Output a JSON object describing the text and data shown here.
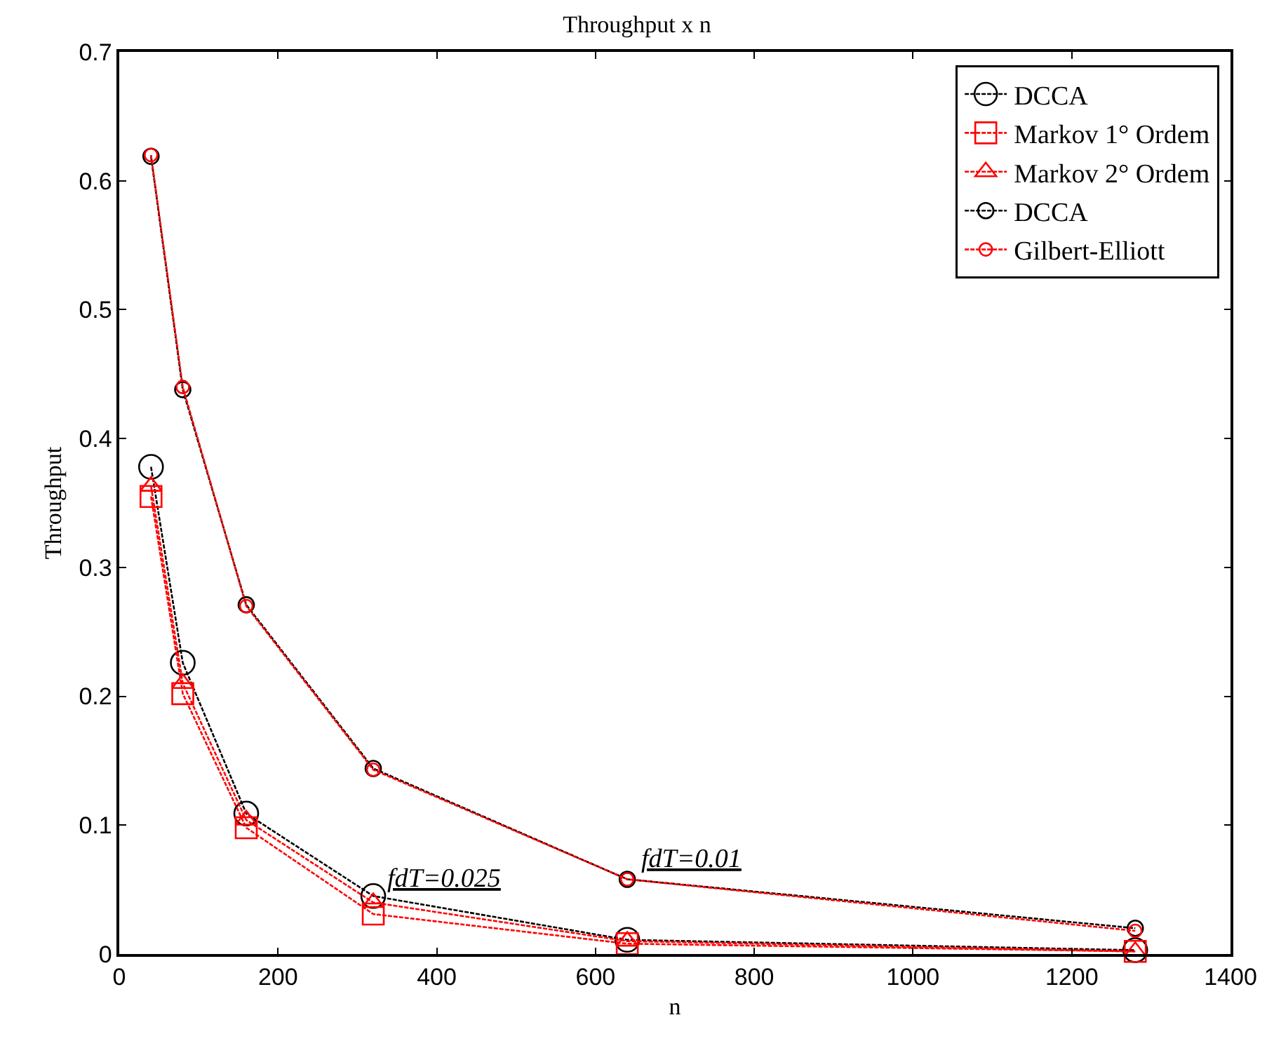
{
  "chart_data": {
    "type": "line",
    "title": "Throughput x n",
    "xlabel": "n",
    "ylabel": "Throughput",
    "x": [
      40,
      80,
      160,
      320,
      640,
      1280
    ],
    "series": [
      {
        "name": "DCCA",
        "color": "#000000",
        "marker": "circle",
        "values": [
          0.378,
          0.226,
          0.109,
          0.045,
          0.011,
          0.003
        ]
      },
      {
        "name": "Markov 1° Ordem",
        "color": "#ff0000",
        "marker": "square",
        "values": [
          0.355,
          0.202,
          0.098,
          0.031,
          0.008,
          0.002
        ]
      },
      {
        "name": "Markov 2° Ordem",
        "color": "#ff0000",
        "marker": "triangle",
        "values": [
          0.363,
          0.21,
          0.104,
          0.04,
          0.01,
          0.002
        ]
      },
      {
        "name": "DCCA",
        "color": "#000000",
        "marker": "circle",
        "values": [
          0.619,
          0.438,
          0.271,
          0.144,
          0.058,
          0.02
        ]
      },
      {
        "name": "Gilbert-Elliott",
        "color": "#ff0000",
        "marker": "circle",
        "values": [
          0.62,
          0.44,
          0.27,
          0.143,
          0.058,
          0.018
        ]
      }
    ],
    "annotations": [
      {
        "text": "fdT=0.025",
        "x": 320,
        "y": 0.045
      },
      {
        "text": "fdT=0.01",
        "x": 640,
        "y": 0.06
      }
    ],
    "xlim": [
      0,
      1400
    ],
    "xticks": [
      0,
      200,
      400,
      600,
      800,
      1000,
      1200,
      1400
    ],
    "ylim": [
      0,
      0.7
    ],
    "yticks": [
      0,
      0.1,
      0.2,
      0.3,
      0.4,
      0.5,
      0.6,
      0.7
    ],
    "grid": false,
    "legend": "top right",
    "line_style": "dotted"
  }
}
